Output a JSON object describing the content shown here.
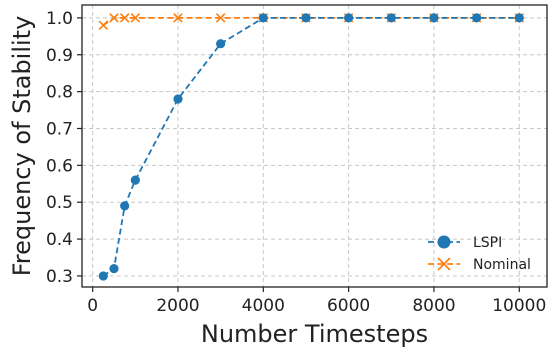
{
  "chart_data": {
    "type": "line",
    "xlabel": "Number Timesteps",
    "ylabel": "Frequency of Stability",
    "xlim": [
      -250,
      10650
    ],
    "ylim": [
      0.27,
      1.035
    ],
    "xticks": [
      0,
      2000,
      4000,
      6000,
      8000,
      10000
    ],
    "yticks": [
      0.3,
      0.4,
      0.5,
      0.6,
      0.7,
      0.8,
      0.9,
      1.0
    ],
    "xtick_labels": [
      "0",
      "2000",
      "4000",
      "6000",
      "8000",
      "10000"
    ],
    "ytick_labels": [
      "0.3",
      "0.4",
      "0.5",
      "0.6",
      "0.7",
      "0.8",
      "0.9",
      "1.0"
    ],
    "grid": true,
    "legend_position": "lower right",
    "series": [
      {
        "name": "LSPI",
        "color": "#1f77b4",
        "marker": "circle",
        "linestyle": "dashed",
        "x": [
          250,
          500,
          750,
          1000,
          2000,
          3000,
          4000,
          5000,
          6000,
          7000,
          8000,
          9000,
          10000
        ],
        "y": [
          0.3,
          0.32,
          0.49,
          0.56,
          0.78,
          0.93,
          1.0,
          1.0,
          1.0,
          1.0,
          1.0,
          1.0,
          1.0
        ]
      },
      {
        "name": "Nominal",
        "color": "#ff7f0e",
        "marker": "x",
        "linestyle": "dashed",
        "x": [
          250,
          500,
          750,
          1000,
          2000,
          3000,
          4000,
          5000,
          6000,
          7000,
          8000,
          9000,
          10000
        ],
        "y": [
          0.98,
          1.0,
          1.0,
          1.0,
          1.0,
          1.0,
          1.0,
          1.0,
          1.0,
          1.0,
          1.0,
          1.0,
          1.0
        ]
      }
    ]
  }
}
